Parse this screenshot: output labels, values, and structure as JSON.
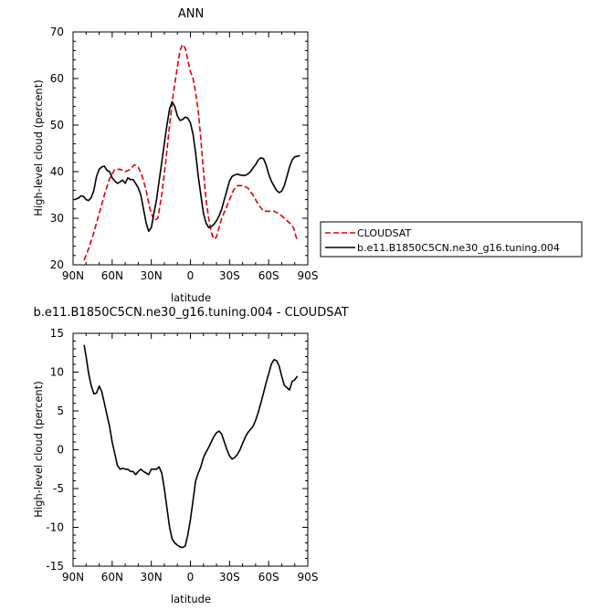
{
  "chart_data": [
    {
      "type": "line",
      "title": "ANN",
      "xlabel": "latitude",
      "ylabel": "High-level cloud (percent)",
      "xlim": [
        90,
        -90
      ],
      "ylim": [
        20,
        70
      ],
      "x_ticks": [
        90,
        60,
        30,
        0,
        -30,
        -60,
        -90
      ],
      "x_tick_labels": [
        "90N",
        "60N",
        "30N",
        "0",
        "30S",
        "60S",
        "90S"
      ],
      "y_ticks": [
        20,
        30,
        40,
        50,
        60,
        70
      ],
      "y_tick_labels": [
        "20",
        "30",
        "40",
        "50",
        "60",
        "70"
      ],
      "grid": false,
      "legend_position": "right",
      "series": [
        {
          "name": "CLOUDSAT",
          "color": "#e00000",
          "dash": "dashed",
          "x": [
            81.5,
            78,
            74,
            70,
            66,
            62,
            58,
            54,
            50,
            46,
            43,
            40,
            37,
            34,
            31,
            28,
            25,
            22,
            19,
            16,
            13,
            10,
            8,
            6,
            4,
            2,
            0,
            -2,
            -4,
            -6,
            -8,
            -10,
            -12,
            -14,
            -16,
            -18,
            -20,
            -22,
            -24,
            -27,
            -30,
            -33,
            -36,
            -40,
            -44,
            -48,
            -52,
            -56,
            -60,
            -64,
            -68,
            -72,
            -76,
            -79,
            -81.5
          ],
          "y": [
            21,
            23.5,
            27,
            31,
            35,
            38.5,
            40.5,
            40.5,
            40,
            40.5,
            41.5,
            41,
            39,
            36,
            32,
            29.5,
            30,
            35,
            42,
            50,
            57,
            62.5,
            66,
            67.3,
            66.5,
            64,
            61.5,
            60,
            57,
            53,
            47,
            40,
            34,
            30,
            27,
            25.5,
            26,
            28,
            30,
            32,
            34,
            36,
            37,
            37,
            36.5,
            35,
            33,
            31.5,
            31.5,
            31.5,
            31,
            30,
            29,
            28,
            25.5
          ]
        },
        {
          "name": "b.e11.B1850C5CN.ne30_g16.tuning.004",
          "color": "#000000",
          "dash": "solid",
          "x": [
            89,
            86,
            84,
            82,
            80,
            78,
            76,
            74,
            72,
            70,
            68,
            66,
            64,
            62,
            60,
            58,
            56,
            54,
            52,
            50,
            48,
            46,
            44,
            42,
            40,
            38,
            36,
            34,
            32,
            30,
            28,
            26,
            24,
            22,
            20,
            18,
            16,
            14,
            12,
            10,
            8,
            6,
            4,
            2,
            0,
            -2,
            -4,
            -6,
            -8,
            -10,
            -12,
            -14,
            -16,
            -18,
            -20,
            -22,
            -24,
            -26,
            -28,
            -30,
            -32,
            -34,
            -36,
            -38,
            -40,
            -42,
            -44,
            -46,
            -48,
            -50,
            -52,
            -54,
            -56,
            -58,
            -60,
            -62,
            -64,
            -66,
            -68,
            -70,
            -72,
            -74,
            -76,
            -78,
            -80,
            -82,
            -84
          ],
          "y": [
            34,
            34.3,
            34.8,
            34.7,
            34,
            33.8,
            34.5,
            36,
            39,
            40.5,
            41,
            41.2,
            40.3,
            40,
            38.7,
            38,
            37.5,
            37.8,
            38.2,
            37.5,
            38.7,
            38.3,
            38.3,
            37.5,
            36.5,
            35,
            32,
            29,
            27.2,
            28,
            31,
            34,
            38,
            42,
            46,
            50,
            53.5,
            55,
            54,
            52,
            51,
            51.2,
            51.7,
            51.5,
            50.5,
            48,
            44,
            39,
            35,
            31,
            29,
            28,
            28.2,
            28.7,
            29.5,
            30.5,
            32,
            34,
            36,
            38,
            39,
            39.3,
            39.5,
            39.3,
            39.2,
            39.2,
            39.5,
            40,
            40.8,
            41.5,
            42.5,
            43,
            42.8,
            41.5,
            39.5,
            38,
            37,
            36,
            35.5,
            35.8,
            37,
            39,
            41,
            42.5,
            43.2,
            43.3,
            43.5
          ]
        }
      ]
    },
    {
      "type": "line",
      "title": "b.e11.B1850C5CN.ne30_g16.tuning.004 - CLOUDSAT",
      "xlabel": "latitude",
      "ylabel": "High-level cloud (percent)",
      "xlim": [
        90,
        -90
      ],
      "ylim": [
        -15,
        15
      ],
      "x_ticks": [
        90,
        60,
        30,
        0,
        -30,
        -60,
        -90
      ],
      "x_tick_labels": [
        "90N",
        "60N",
        "30N",
        "0",
        "30S",
        "60S",
        "90S"
      ],
      "y_ticks": [
        -15,
        -10,
        -5,
        0,
        5,
        10,
        15
      ],
      "y_tick_labels": [
        "-15",
        "-10",
        "-5",
        "0",
        "5",
        "10",
        "15"
      ],
      "grid": false,
      "series": [
        {
          "color": "#000000",
          "dash": "solid",
          "x": [
            81.5,
            80,
            78,
            76,
            74,
            72,
            70,
            68,
            66,
            64,
            62,
            60,
            58,
            56,
            54,
            52,
            50,
            48,
            46,
            44,
            42,
            40,
            38,
            36,
            34,
            32,
            30,
            28,
            26,
            24,
            22,
            20,
            18,
            16,
            14,
            12,
            10,
            8,
            6,
            4,
            2,
            0,
            -2,
            -4,
            -6,
            -8,
            -10,
            -12,
            -14,
            -16,
            -18,
            -20,
            -22,
            -24,
            -26,
            -28,
            -30,
            -32,
            -34,
            -36,
            -38,
            -40,
            -42,
            -44,
            -46,
            -48,
            -50,
            -52,
            -54,
            -56,
            -58,
            -60,
            -62,
            -64,
            -66,
            -68,
            -70,
            -72,
            -74,
            -76,
            -78,
            -80,
            -82
          ],
          "y": [
            13.5,
            12,
            9.8,
            8.2,
            7.2,
            7.3,
            8.2,
            7.5,
            6,
            4.5,
            3,
            1,
            -0.5,
            -2,
            -2.5,
            -2.4,
            -2.5,
            -2.5,
            -2.8,
            -2.8,
            -3.2,
            -2.8,
            -2.5,
            -2.8,
            -3,
            -3.2,
            -2.5,
            -2.5,
            -2.5,
            -2.2,
            -3,
            -5,
            -7.5,
            -10,
            -11.5,
            -12,
            -12.3,
            -12.5,
            -12.6,
            -12.4,
            -11,
            -9,
            -6.5,
            -4,
            -3,
            -2.2,
            -1,
            -0.3,
            0.3,
            1,
            1.7,
            2.2,
            2.4,
            2,
            1,
            0,
            -0.8,
            -1.2,
            -1,
            -0.6,
            0,
            0.8,
            1.6,
            2.2,
            2.6,
            3,
            3.8,
            4.8,
            6,
            7.3,
            8.6,
            9.8,
            11,
            11.6,
            11.5,
            10.8,
            9.5,
            8.3,
            8,
            7.7,
            8.8,
            9,
            9.5
          ]
        }
      ]
    }
  ]
}
